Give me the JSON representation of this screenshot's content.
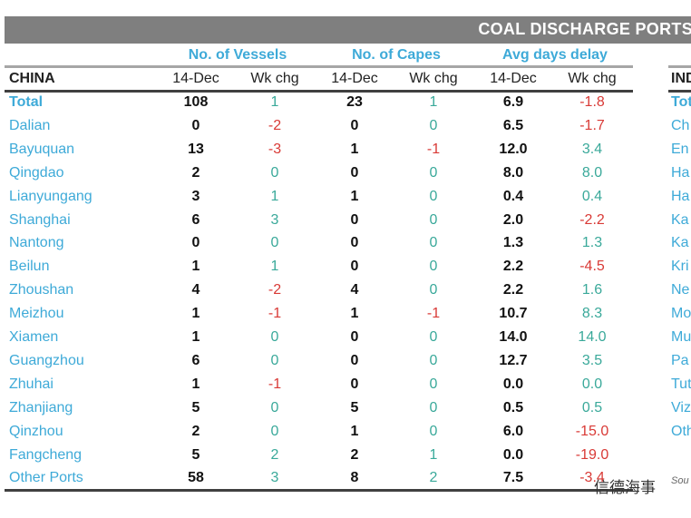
{
  "title": "COAL DISCHARGE PORTS",
  "table": {
    "groups": [
      "No. of Vessels",
      "No. of Capes",
      "Avg days delay"
    ],
    "region": "CHINA",
    "columns": [
      "14-Dec",
      "Wk chg",
      "14-Dec",
      "Wk chg",
      "14-Dec",
      "Wk chg"
    ],
    "rows": [
      [
        "Total",
        "108",
        "1",
        "23",
        "1",
        "6.9",
        "-1.8"
      ],
      [
        "Dalian",
        "0",
        "-2",
        "0",
        "0",
        "6.5",
        "-1.7"
      ],
      [
        "Bayuquan",
        "13",
        "-3",
        "1",
        "-1",
        "12.0",
        "3.4"
      ],
      [
        "Qingdao",
        "2",
        "0",
        "0",
        "0",
        "8.0",
        "8.0"
      ],
      [
        "Lianyungang",
        "3",
        "1",
        "1",
        "0",
        "0.4",
        "0.4"
      ],
      [
        "Shanghai",
        "6",
        "3",
        "0",
        "0",
        "2.0",
        "-2.2"
      ],
      [
        "Nantong",
        "0",
        "0",
        "0",
        "0",
        "1.3",
        "1.3"
      ],
      [
        "Beilun",
        "1",
        "1",
        "0",
        "0",
        "2.2",
        "-4.5"
      ],
      [
        "Zhoushan",
        "4",
        "-2",
        "4",
        "0",
        "2.2",
        "1.6"
      ],
      [
        "Meizhou",
        "1",
        "-1",
        "1",
        "-1",
        "10.7",
        "8.3"
      ],
      [
        "Xiamen",
        "1",
        "0",
        "0",
        "0",
        "14.0",
        "14.0"
      ],
      [
        "Guangzhou",
        "6",
        "0",
        "0",
        "0",
        "12.7",
        "3.5"
      ],
      [
        "Zhuhai",
        "1",
        "-1",
        "0",
        "0",
        "0.0",
        "0.0"
      ],
      [
        "Zhanjiang",
        "5",
        "0",
        "5",
        "0",
        "0.5",
        "0.5"
      ],
      [
        "Qinzhou",
        "2",
        "0",
        "1",
        "0",
        "6.0",
        "-15.0"
      ],
      [
        "Fangcheng",
        "5",
        "2",
        "2",
        "1",
        "0.0",
        "-19.0"
      ],
      [
        "Other Ports",
        "58",
        "3",
        "8",
        "2",
        "7.5",
        "-3.4"
      ]
    ]
  },
  "side_table": {
    "region": "INDI",
    "rows": [
      "Tot",
      "Ch",
      "En",
      "Ha",
      "Ha",
      "Ka",
      "Ka",
      "Kri",
      "Ne",
      "Mo",
      "Mu",
      "Pa",
      "Tut",
      "Viz",
      "Oth"
    ]
  },
  "source": "Sou",
  "watermark": "信德海事"
}
